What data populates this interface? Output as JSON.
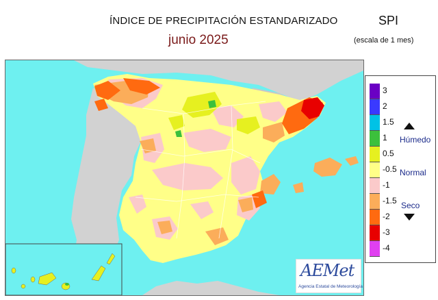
{
  "header": {
    "title": "ÍNDICE DE PRECIPITACIÓN ESTANDARIZADO",
    "subtitle": "junio  2025",
    "index": "SPI",
    "scale": "(escala de 1 mes)"
  },
  "legend": {
    "ticks": [
      "3",
      "2",
      "1.5",
      "1",
      "0.5",
      "-0.5",
      "-1",
      "-1.5",
      "-2",
      "-3",
      "-4"
    ],
    "categories": {
      "wet": "Húmedo",
      "normal": "Normal",
      "dry": "Seco"
    },
    "colors": [
      "#6a00c4",
      "#3a3aff",
      "#00c2e6",
      "#3cc03c",
      "#e6f020",
      "#ffff88",
      "#fbcaca",
      "#fbad5a",
      "#ff6a10",
      "#e80000",
      "#e040f0"
    ]
  },
  "logo": {
    "name": "AEMet",
    "tagline": "Agencia Estatal de Meteorología"
  },
  "map": {
    "colors": {
      "sea": "#6ef0f0",
      "land_outside": "#d2d2d2",
      "normal": "#ffff88",
      "slightly_dry": "#fbcaca",
      "dry": "#fbad5a",
      "very_dry": "#ff6a10",
      "extreme": "#e80000",
      "wet": "#e6f020",
      "very_wet": "#3cc03c"
    }
  }
}
